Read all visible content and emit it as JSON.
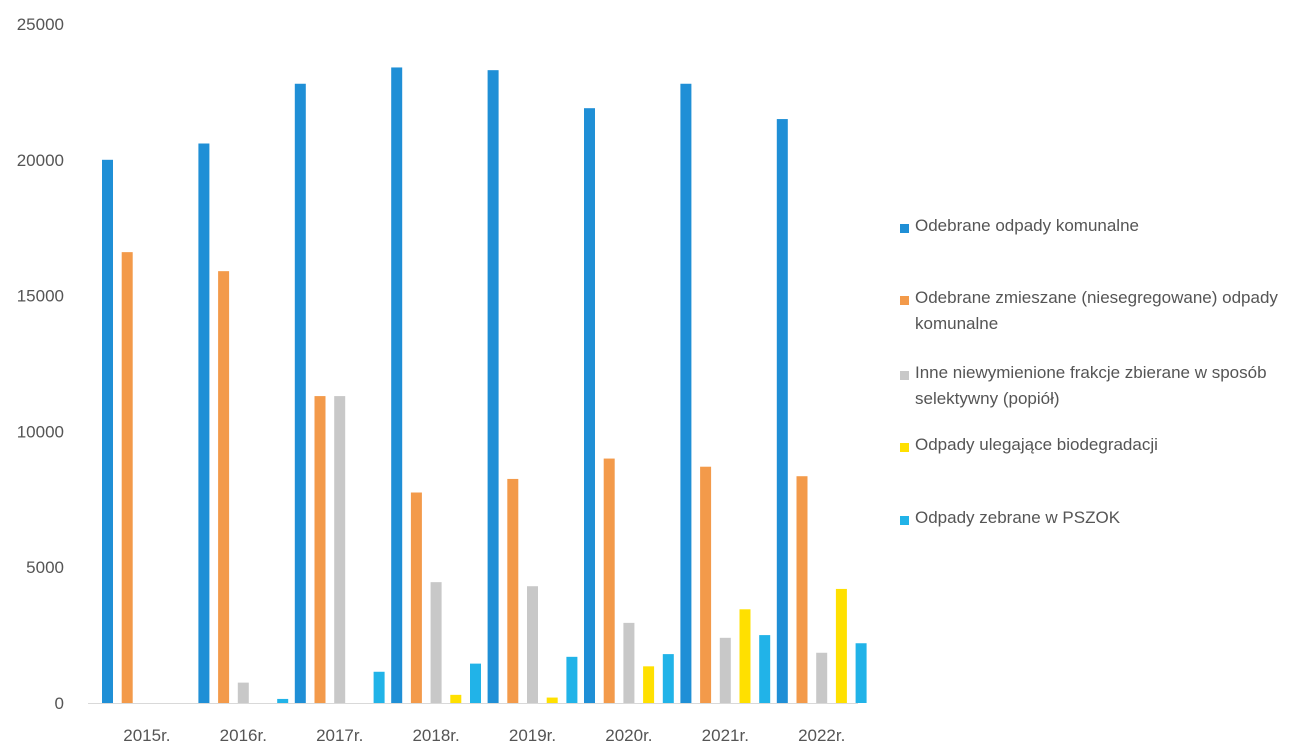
{
  "chart_data": {
    "type": "bar",
    "title": "",
    "xlabel": "",
    "ylabel": "",
    "ylim": [
      0,
      25000
    ],
    "yticks": [
      "0",
      "5000",
      "10000",
      "15000",
      "20000",
      "25000"
    ],
    "grid": false,
    "legend_position": "right",
    "categories": [
      "2015r.",
      "2016r.",
      "2017r.",
      "2018r.",
      "2019r.",
      "2020r.",
      "2021r.",
      "2022r."
    ],
    "series": [
      {
        "name": "Odebrane odpady komunalne",
        "color": "#1f8fd6",
        "values": [
          20000,
          20600,
          22800,
          23400,
          23300,
          21900,
          22800,
          21500
        ]
      },
      {
        "name": "Odebrane zmieszane (niesegregowane) odpady komunalne",
        "color": "#f39a4a",
        "values": [
          16600,
          15900,
          11300,
          7750,
          8250,
          9000,
          8700,
          8350
        ]
      },
      {
        "name": "Inne niewymienione frakcje zbierane w sposób selektywny (popiół)",
        "color": "#c8c8c8",
        "values": [
          0,
          750,
          11300,
          4450,
          4300,
          2950,
          2400,
          1850
        ]
      },
      {
        "name": "Odpady ulegające biodegradacji",
        "color": "#ffe000",
        "values": [
          0,
          0,
          0,
          300,
          200,
          1350,
          3450,
          4200
        ]
      },
      {
        "name": "Odpady zebrane w PSZOK",
        "color": "#21b3e8",
        "values": [
          0,
          150,
          1150,
          1450,
          1700,
          1800,
          2500,
          2200
        ]
      }
    ]
  }
}
